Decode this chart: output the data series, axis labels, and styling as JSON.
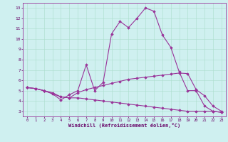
{
  "xlabel": "Windchill (Refroidissement éolien,°C)",
  "x_values": [
    0,
    1,
    2,
    3,
    4,
    5,
    6,
    7,
    8,
    9,
    10,
    11,
    12,
    13,
    14,
    15,
    16,
    17,
    18,
    19,
    20,
    21,
    22,
    23
  ],
  "line1": [
    5.3,
    5.2,
    5.0,
    4.7,
    4.1,
    4.6,
    5.0,
    7.5,
    5.0,
    5.8,
    10.5,
    11.7,
    11.1,
    12.0,
    13.0,
    12.7,
    10.4,
    9.2,
    6.8,
    5.0,
    5.0,
    3.5,
    3.0,
    2.9
  ],
  "line2": [
    5.3,
    5.2,
    5.0,
    4.8,
    4.4,
    4.3,
    4.8,
    5.1,
    5.3,
    5.5,
    5.7,
    5.9,
    6.1,
    6.2,
    6.3,
    6.4,
    6.5,
    6.6,
    6.7,
    6.65,
    5.1,
    4.5,
    3.5,
    3.0
  ],
  "line3": [
    5.3,
    5.2,
    5.0,
    4.7,
    4.4,
    4.3,
    4.3,
    4.2,
    4.1,
    4.0,
    3.9,
    3.8,
    3.7,
    3.6,
    3.5,
    3.4,
    3.3,
    3.2,
    3.1,
    3.0,
    3.0,
    3.0,
    3.0,
    2.9
  ],
  "line_color": "#993399",
  "bg_color": "#cff0f0",
  "grid_color": "#aaddcc",
  "ylim": [
    2.5,
    13.5
  ],
  "xlim": [
    -0.5,
    23.5
  ],
  "yticks": [
    3,
    4,
    5,
    6,
    7,
    8,
    9,
    10,
    11,
    12,
    13
  ],
  "xticks": [
    0,
    1,
    2,
    3,
    4,
    5,
    6,
    7,
    8,
    9,
    10,
    11,
    12,
    13,
    14,
    15,
    16,
    17,
    18,
    19,
    20,
    21,
    22,
    23
  ],
  "spine_color": "#993399",
  "tick_color": "#660066",
  "label_color": "#660066"
}
